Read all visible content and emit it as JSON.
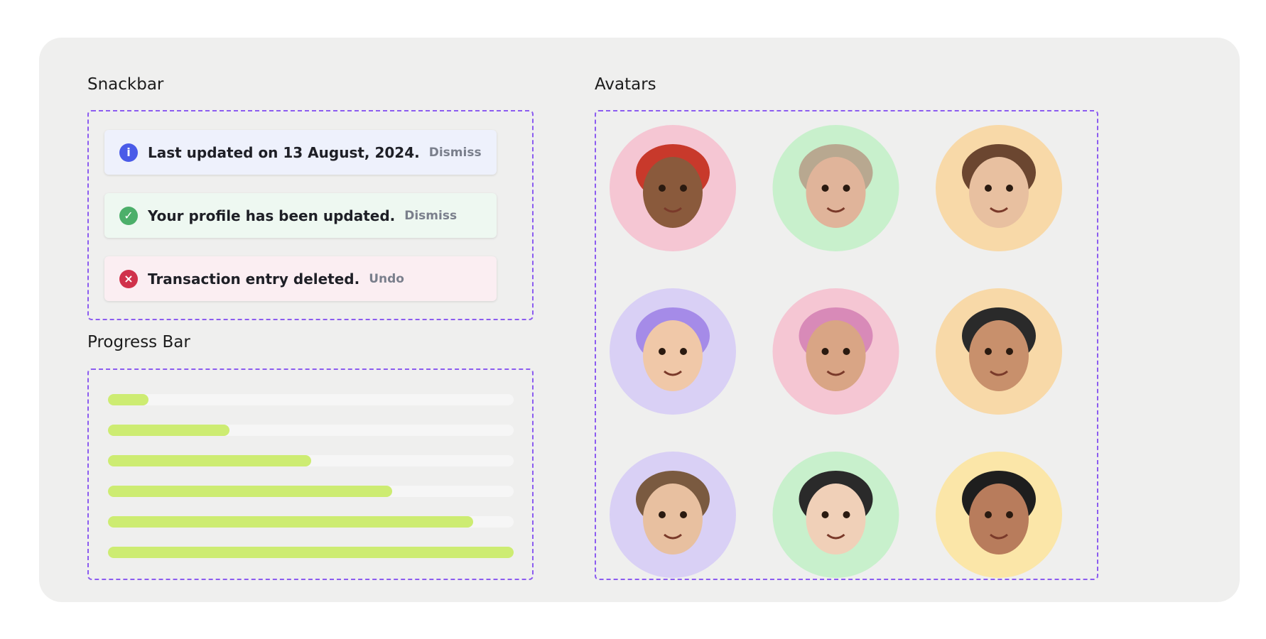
{
  "snackbar": {
    "title": "Snackbar",
    "items": [
      {
        "kind": "info",
        "message": "Last updated on 13 August, 2024.",
        "action": "Dismiss"
      },
      {
        "kind": "success",
        "message": "Your profile has been updated.",
        "action": "Dismiss"
      },
      {
        "kind": "error",
        "message": "Transaction entry deleted.",
        "action": "Undo"
      }
    ]
  },
  "progress": {
    "title": "Progress Bar",
    "values": [
      10,
      30,
      50,
      70,
      90,
      100
    ]
  },
  "avatars": {
    "title": "Avatars"
  }
}
